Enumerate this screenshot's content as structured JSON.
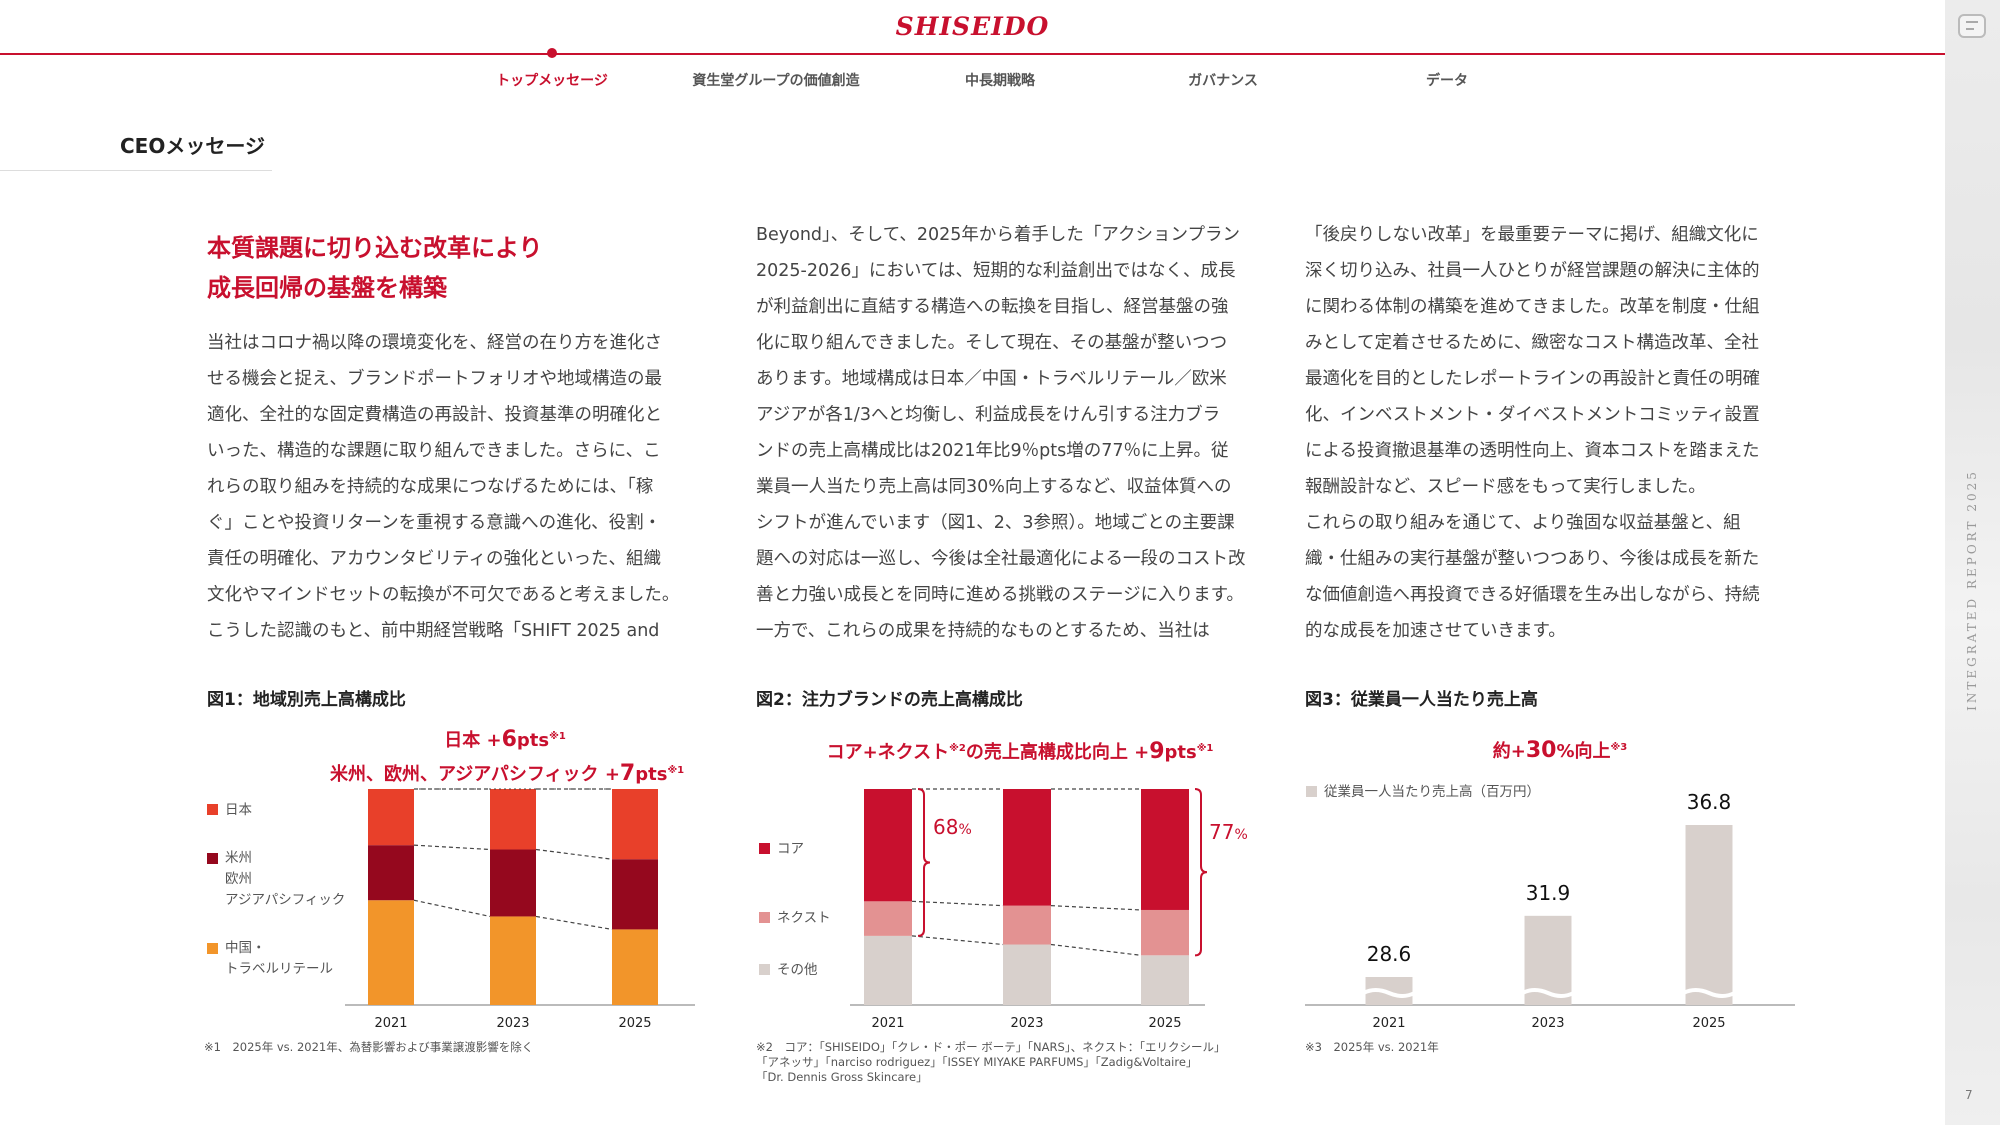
{
  "header": {
    "logo": "SHISEIDO",
    "nav": [
      {
        "label": "トップメッセージ",
        "active": true
      },
      {
        "label": "資生堂グループの価値創造",
        "active": false
      },
      {
        "label": "中長期戦略",
        "active": false
      },
      {
        "label": "ガバナンス",
        "active": false
      },
      {
        "label": "データ",
        "active": false
      }
    ]
  },
  "side": {
    "vertical_text": "INTEGRATED REPORT 2025",
    "page_number": "7"
  },
  "section_title": "CEOメッセージ",
  "headline": {
    "line1": "本質課題に切り込む改革により",
    "line2": "成長回帰の基盤を構築"
  },
  "columns": {
    "col1": [
      "当社はコロナ禍以降の環境変化を、経営の在り方を進化さ",
      "せる機会と捉え、ブランドポートフォリオや地域構造の最",
      "適化、全社的な固定費構造の再設計、投資基準の明確化と",
      "いった、構造的な課題に取り組んできました。さらに、こ",
      "れらの取り組みを持続的な成果につなげるためには、「稼",
      "ぐ」ことや投資リターンを重視する意識への進化、役割・",
      "責任の明確化、アカウンタビリティの強化といった、組織",
      "文化やマインドセットの転換が不可欠であると考えました。",
      "こうした認識のもと、前中期経営戦略「SHIFT 2025 and"
    ],
    "col2": [
      "Beyond」、そして、2025年から着手した「アクションプラン",
      "2025-2026」においては、短期的な利益創出ではなく、成長",
      "が利益創出に直結する構造への転換を目指し、経営基盤の強",
      "化に取り組んできました。そして現在、その基盤が整いつつ",
      "あります。地域構成は日本／中国・トラベルリテール／欧米",
      "アジアが各1/3へと均衡し、利益成長をけん引する注力ブラ",
      "ンドの売上高構成比は2021年比9％pts増の77％に上昇。従",
      "業員一人当たり売上高は同30%向上するなど、収益体質への",
      "シフトが進んでいます（図1、2、3参照）。地域ごとの主要課",
      "題への対応は一巡し、今後は全社最適化による一段のコスト改",
      "善と力強い成長とを同時に進める挑戦のステージに入ります。",
      "一方で、これらの成果を持続的なものとするため、当社は"
    ],
    "col3": [
      "「後戻りしない改革」を最重要テーマに掲げ、組織文化に",
      "深く切り込み、社員一人ひとりが経営課題の解決に主体的",
      "に関わる体制の構築を進めてきました。改革を制度・仕組",
      "みとして定着させるために、緻密なコスト構造改革、全社",
      "最適化を目的としたレポートラインの再設計と責任の明確",
      "化、インベストメント・ダイベストメントコミッティ設置",
      "による投資撤退基準の透明性向上、資本コストを踏まえた",
      "報酬設計など、スピード感をもって実行しました。",
      "これらの取り組みを通じて、より強固な収益基盤と、組",
      "織・仕組みの実行基盤が整いつつあり、今後は成長を新た",
      "な価値創造へ再投資できる好循環を生み出しながら、持続",
      "的な成長を加速させていきます。"
    ]
  },
  "fig1": {
    "title": "図1：地域別売上高構成比",
    "callout": {
      "l1_a": "日本 +",
      "l1_num": "6",
      "l1_unit": "pts",
      "l1_mark": "※1",
      "l2_a": "米州、欧州、アジアパシフィック +",
      "l2_num": "7",
      "l2_unit": "pts",
      "l2_mark": "※1"
    },
    "legend": [
      {
        "label": "日本",
        "color": "#e8402a"
      },
      {
        "label": "米州\n欧州\nアジアパシフィック",
        "color": "#95081e"
      },
      {
        "label": "中国・\nトラベルリテール",
        "color": "#f2952a"
      }
    ],
    "note": "※1　2025年 vs. 2021年、為替影響および事業譲渡影響を除く"
  },
  "fig2": {
    "title": "図2：注力ブランドの売上高構成比",
    "callout": {
      "a": "コア+ネクスト",
      "mark1": "※2",
      "b": "の売上高構成比向上 +",
      "num": "9",
      "unit": "pts",
      "mark2": "※1"
    },
    "legend": [
      {
        "label": "コア",
        "color": "#c8102e"
      },
      {
        "label": "ネクスト",
        "color": "#e39292"
      },
      {
        "label": "その他",
        "color": "#d8d0cc"
      }
    ],
    "brace_labels": [
      {
        "num": "68",
        "unit": "%"
      },
      {
        "num": "77",
        "unit": "%"
      }
    ],
    "note": "※2　コア：「SHISEIDO」「クレ・ド・ポー ボーテ」「NARS」、ネクスト：「エリクシール」\n「アネッサ」「narciso rodriguez」「ISSEY MIYAKE PARFUMS」「Zadig&Voltaire」\n「Dr. Dennis Gross Skincare」"
  },
  "fig3": {
    "title": "図3：従業員一人当たり売上高",
    "callout": {
      "a": "約+",
      "num": "30",
      "unit": "%向上",
      "mark": "※3"
    },
    "legend": {
      "label": "従業員一人当たり売上高（百万円）",
      "color": "#d8d0cc"
    },
    "note": "※3　2025年 vs. 2021年"
  },
  "chart_data": [
    {
      "type": "bar",
      "title": "図1：地域別売上高構成比",
      "stacked": true,
      "categories": [
        "2021",
        "2023",
        "2025"
      ],
      "ylim": [
        0,
        100
      ],
      "series": [
        {
          "name": "中国・トラベルリテール",
          "values": [
            48.5,
            41,
            35
          ],
          "color": "#f2952a"
        },
        {
          "name": "米州 欧州 アジアパシフィック",
          "values": [
            25.5,
            31,
            32.5
          ],
          "color": "#95081e"
        },
        {
          "name": "日本",
          "values": [
            26,
            28,
            32.5
          ],
          "color": "#e8402a"
        }
      ]
    },
    {
      "type": "bar",
      "title": "図2：注力ブランドの売上高構成比",
      "stacked": true,
      "categories": [
        "2021",
        "2023",
        "2025"
      ],
      "ylim": [
        0,
        100
      ],
      "series": [
        {
          "name": "その他",
          "values": [
            32,
            28,
            23
          ],
          "color": "#d8d0cc"
        },
        {
          "name": "ネクスト",
          "values": [
            16,
            18,
            21
          ],
          "color": "#e39292"
        },
        {
          "name": "コア",
          "values": [
            52,
            54,
            56
          ],
          "color": "#c8102e"
        }
      ]
    },
    {
      "type": "bar",
      "title": "図3：従業員一人当たり売上高",
      "categories": [
        "2021",
        "2023",
        "2025"
      ],
      "series": [
        {
          "name": "従業員一人当たり売上高（百万円）",
          "values": [
            28.6,
            31.9,
            36.8
          ],
          "color": "#d8d0cc"
        }
      ],
      "value_labels": [
        "28.6",
        "31.9",
        "36.8"
      ],
      "axis_break": true
    }
  ]
}
